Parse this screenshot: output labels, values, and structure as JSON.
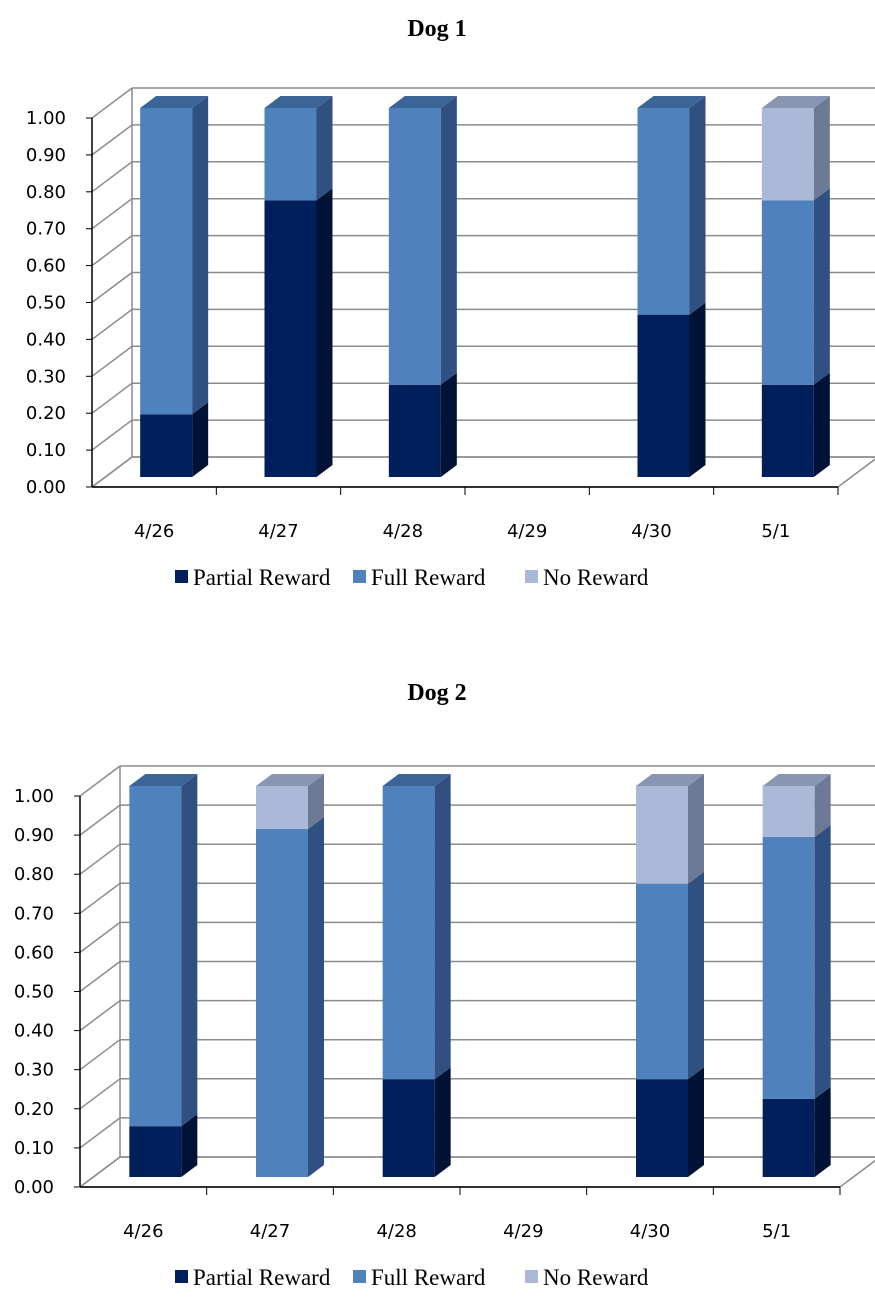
{
  "colors": {
    "partial_front": "#001F5B",
    "partial_side": "#001235",
    "partial_top": "#13306A",
    "full_front": "#4F81BD",
    "full_side": "#2F5080",
    "full_top": "#3C6597",
    "none_front": "#AAB9D8",
    "none_side": "#6C7A96",
    "none_top": "#8896B3",
    "grid": "#8C8C8C",
    "axis": "#000000"
  },
  "legend": [
    "Partial Reward",
    "Full Reward",
    "No Reward"
  ],
  "chart_data": [
    {
      "type": "bar",
      "stacked": true,
      "title": "Dog 1",
      "categories": [
        "4/26",
        "4/27",
        "4/28",
        "4/29",
        "4/30",
        "5/1"
      ],
      "yticks": [
        "0.00",
        "0.10",
        "0.20",
        "0.30",
        "0.40",
        "0.50",
        "0.60",
        "0.70",
        "0.80",
        "0.90",
        "1.00"
      ],
      "ylim": [
        0,
        1
      ],
      "grid": true,
      "legend_position": "bottom",
      "series": [
        {
          "name": "Partial Reward",
          "values": [
            0.17,
            0.75,
            0.25,
            0,
            0.44,
            0.25
          ]
        },
        {
          "name": "Full Reward",
          "values": [
            0.83,
            0.25,
            0.75,
            0,
            0.56,
            0.5
          ]
        },
        {
          "name": "No Reward",
          "values": [
            0,
            0,
            0,
            0,
            0,
            0.25
          ]
        }
      ]
    },
    {
      "type": "bar",
      "stacked": true,
      "title": "Dog 2",
      "categories": [
        "4/26",
        "4/27",
        "4/28",
        "4/29",
        "4/30",
        "5/1"
      ],
      "yticks": [
        "0.00",
        "0.10",
        "0.20",
        "0.30",
        "0.40",
        "0.50",
        "0.60",
        "0.70",
        "0.80",
        "0.90",
        "1.00"
      ],
      "ylim": [
        0,
        1
      ],
      "grid": true,
      "legend_position": "bottom",
      "series": [
        {
          "name": "Partial Reward",
          "values": [
            0.13,
            0,
            0.25,
            0,
            0.25,
            0.2
          ]
        },
        {
          "name": "Full Reward",
          "values": [
            0.87,
            0.89,
            0.75,
            0,
            0.5,
            0.67
          ]
        },
        {
          "name": "No Reward",
          "values": [
            0,
            0.11,
            0,
            0,
            0.25,
            0.13
          ]
        }
      ]
    }
  ]
}
